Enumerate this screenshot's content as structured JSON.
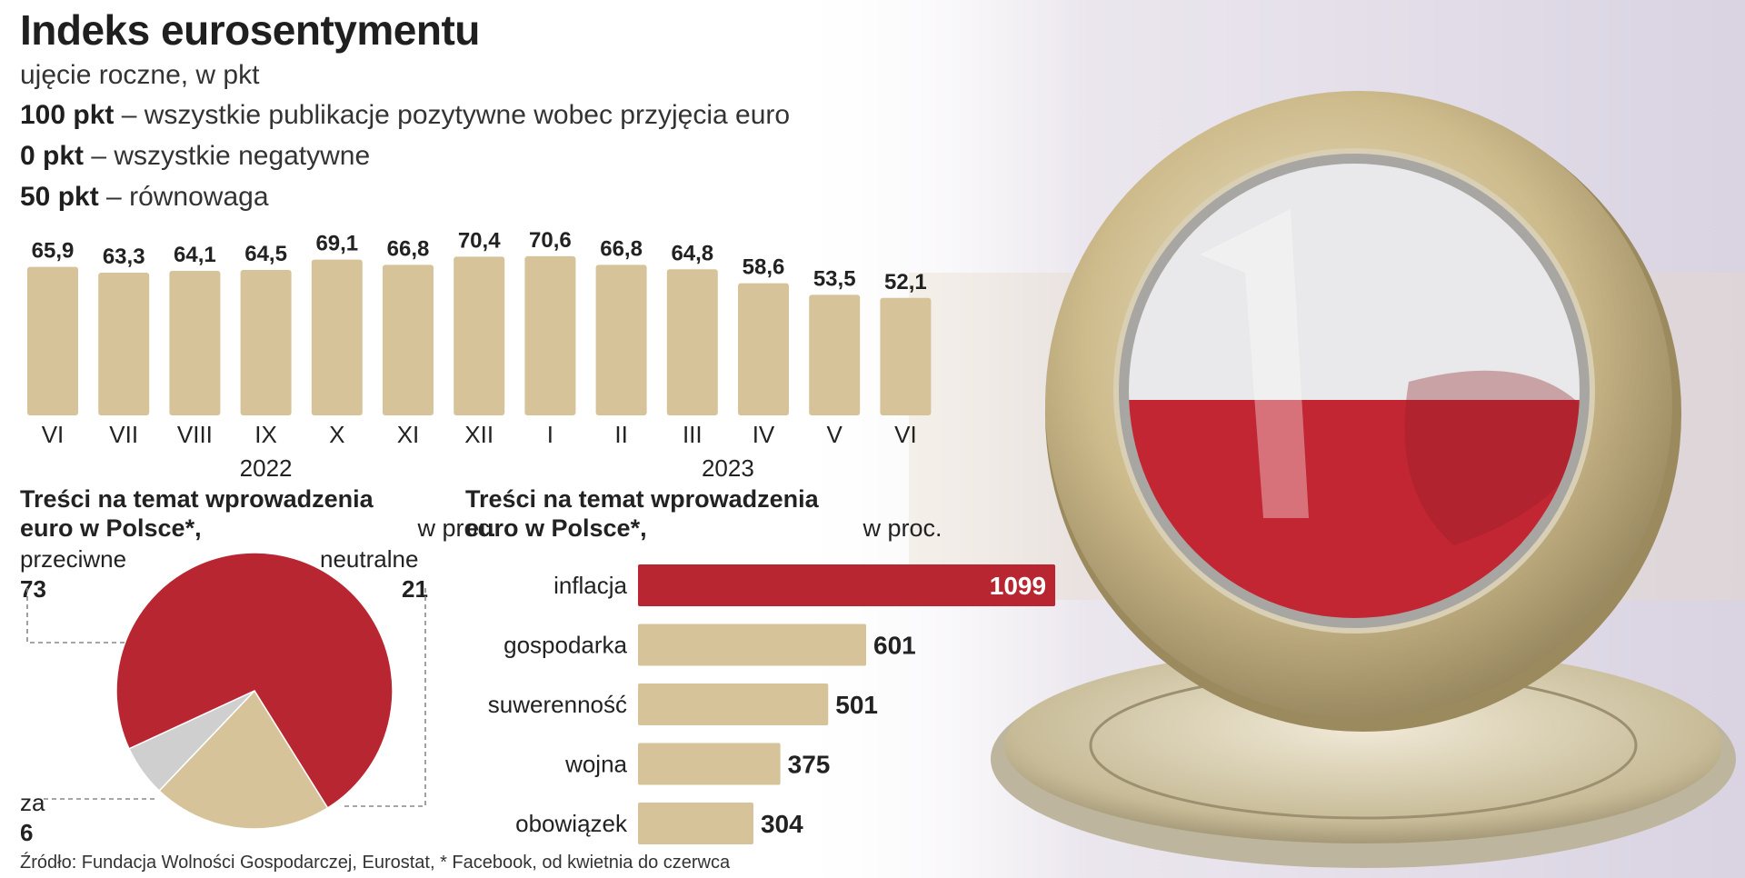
{
  "title": "Indeks eurosentymentu",
  "subtitle": "ujęcie roczne, w pkt",
  "legend": [
    {
      "bold": "100 pkt",
      "text": " – wszystkie publikacje pozytywne wobec przyjęcia euro"
    },
    {
      "bold": "0 pkt",
      "text": " – wszystkie negatywne"
    },
    {
      "bold": "50 pkt",
      "text": " – równowaga"
    }
  ],
  "colors": {
    "tan": "#d6c39a",
    "red": "#b82632",
    "grey": "#cfcfcf"
  },
  "chart_data": [
    {
      "type": "bar",
      "categories": [
        "VI",
        "VII",
        "VIII",
        "IX",
        "X",
        "XI",
        "XII",
        "I",
        "II",
        "III",
        "IV",
        "V",
        "VI"
      ],
      "values": [
        65.9,
        63.3,
        64.1,
        64.5,
        69.1,
        66.8,
        70.4,
        70.6,
        66.8,
        64.8,
        58.6,
        53.5,
        52.1
      ],
      "value_labels": [
        "65,9",
        "63,3",
        "64,1",
        "64,5",
        "69,1",
        "66,8",
        "70,4",
        "70,6",
        "66,8",
        "64,8",
        "58,6",
        "53,5",
        "52,1"
      ],
      "year_labels": [
        {
          "label": "2022",
          "under_index": 3
        },
        {
          "label": "2023",
          "under_index": 9.5
        }
      ]
    },
    {
      "type": "pie",
      "title_bold": "Treści na temat wprowadzenia euro w Polsce*,",
      "title_rest": " w proc.",
      "slices": [
        {
          "label": "przeciwne",
          "value": 73,
          "color": "#b82632"
        },
        {
          "label": "neutralne",
          "value": 21,
          "color": "#d6c39a"
        },
        {
          "label": "za",
          "value": 6,
          "color": "#cfcfcf"
        }
      ]
    },
    {
      "type": "bar",
      "orientation": "horizontal",
      "title_bold": "Treści na temat wprowadzenia euro w Polsce*,",
      "title_rest": " w proc.",
      "categories": [
        "inflacja",
        "gospodarka",
        "suwerenność",
        "wojna",
        "obowiązek"
      ],
      "values": [
        1099,
        601,
        501,
        375,
        304
      ],
      "highlight_color": "#b82632"
    }
  ],
  "source": "Źródło: Fundacja Wolności Gospodarczej, Eurostat, * Facebook, od kwietnia do czerwca"
}
